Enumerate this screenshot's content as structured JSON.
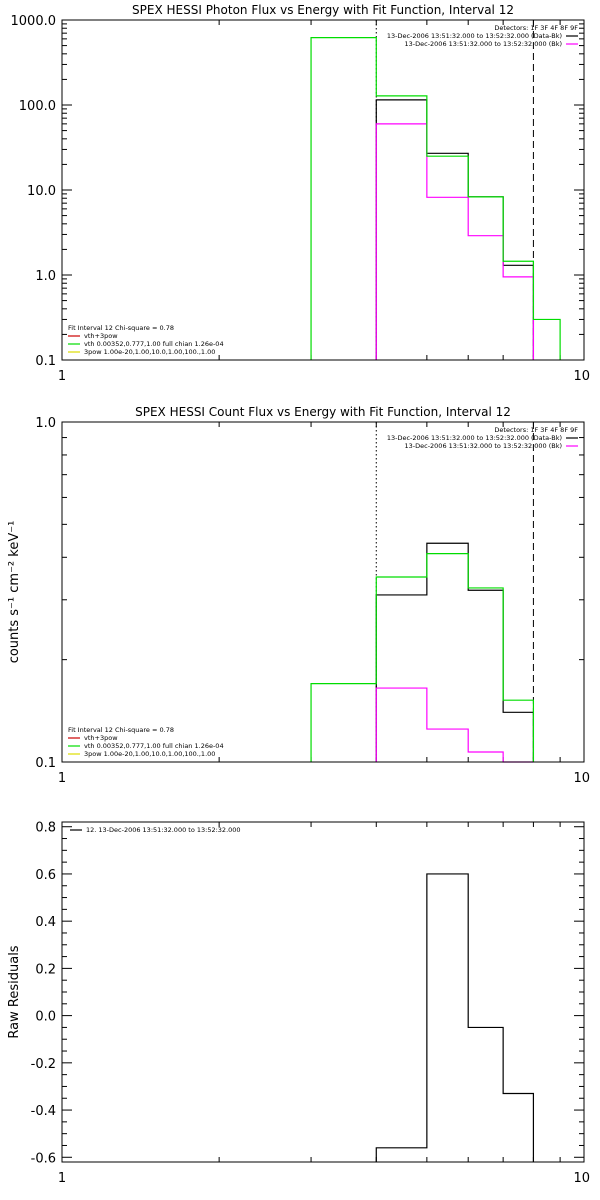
{
  "colors": {
    "data": "#000000",
    "background": "#ff00ff",
    "total_fit": "#00dd00",
    "vth_comp": "#00dd00",
    "vth_3pow": "#cc0000",
    "pow_comp": "#dddd00"
  },
  "chart_data": [
    {
      "type": "line",
      "title": "SPEX HESSI Photon Flux vs Energy with Fit Function, Interval 12",
      "xlabel": "",
      "ylabel": "",
      "xscale": "log",
      "yscale": "log",
      "xlim": [
        1,
        10
      ],
      "ylim": [
        0.1,
        1000
      ],
      "x_ticks": [
        "1",
        "10"
      ],
      "y_ticks": [
        "0.1",
        "1.0",
        "10.0",
        "100.0",
        "1000.0"
      ],
      "legend_top": {
        "header": "Detectors: 1F 3F 4F 8F 9F",
        "entries": [
          {
            "text": "13-Dec-2006 13:51:32.000 to 13:52:32.000 (Data-Bk)",
            "color": "#000000"
          },
          {
            "text": "13-Dec-2006 13:51:32.000 to 13:52:32.000 (Bk)",
            "color": "#ff00ff"
          }
        ]
      },
      "legend_bottom": {
        "header": "Fit Interval 12   Chi-square = 0.78",
        "entries": [
          {
            "text": "vth+3pow",
            "color": "#cc0000"
          },
          {
            "text": "vth 0.00352,0.777,1.00  full chian 1.26e-04",
            "color": "#00dd00"
          },
          {
            "text": "3pow 1.00e-20,1.00,10.0,1.00,100.,1.00",
            "color": "#dddd00"
          }
        ]
      },
      "vlines": [
        {
          "x": 4.0,
          "style": "dotted"
        },
        {
          "x": 8.0,
          "style": "dashed"
        }
      ],
      "series": [
        {
          "name": "13-Dec-2006 13:51:32.000 to 13:52:32.000 (Data-Bk)",
          "color": "#000000",
          "bins": [
            [
              4,
              5,
              115
            ],
            [
              5,
              6,
              27
            ],
            [
              6,
              7,
              8.3
            ],
            [
              7,
              8,
              1.3
            ]
          ]
        },
        {
          "name": "13-Dec-2006 13:51:32.000 to 13:52:32.000 (Bk)",
          "color": "#ff00ff",
          "bins": [
            [
              4,
              5,
              60
            ],
            [
              5,
              6,
              8.2
            ],
            [
              6,
              7,
              2.9
            ],
            [
              7,
              8,
              0.95
            ]
          ]
        },
        {
          "name": "vth+3pow",
          "color": "#00dd00",
          "bins": [
            [
              3,
              4,
              620
            ],
            [
              4,
              5,
              128
            ],
            [
              5,
              6,
              25
            ],
            [
              6,
              7,
              8.3
            ],
            [
              7,
              8,
              1.45
            ],
            [
              8,
              9,
              0.3
            ]
          ]
        }
      ]
    },
    {
      "type": "line",
      "title": "SPEX HESSI Count Flux vs Energy with Fit Function, Interval 12",
      "xlabel": "",
      "ylabel": "counts s⁻¹ cm⁻² keV⁻¹",
      "xscale": "log",
      "yscale": "log",
      "xlim": [
        1,
        10
      ],
      "ylim": [
        0.1,
        1.0
      ],
      "x_ticks": [
        "1",
        "10"
      ],
      "y_ticks": [
        "0.1",
        "1.0"
      ],
      "legend_top": {
        "header": "Detectors: 1F 3F 4F 8F 9F",
        "entries": [
          {
            "text": "13-Dec-2006 13:51:32.000 to 13:52:32.000 (Data-Bk)",
            "color": "#000000"
          },
          {
            "text": "13-Dec-2006 13:51:32.000 to 13:52:32.000 (Bk)",
            "color": "#ff00ff"
          }
        ]
      },
      "legend_bottom": {
        "header": "Fit Interval 12   Chi-square = 0.78",
        "entries": [
          {
            "text": "vth+3pow",
            "color": "#cc0000"
          },
          {
            "text": "vth 0.00352,0.777,1.00  full chian 1.26e-04",
            "color": "#00dd00"
          },
          {
            "text": "3pow 1.00e-20,1.00,10.0,1.00,100.,1.00",
            "color": "#dddd00"
          }
        ]
      },
      "vlines": [
        {
          "x": 4.0,
          "style": "dotted"
        },
        {
          "x": 8.0,
          "style": "dashed"
        }
      ],
      "series": [
        {
          "name": "13-Dec-2006 13:51:32.000 to 13:52:32.000 (Data-Bk)",
          "color": "#000000",
          "bins": [
            [
              4,
              5,
              0.31
            ],
            [
              5,
              6,
              0.44
            ],
            [
              6,
              7,
              0.32
            ],
            [
              7,
              8,
              0.14
            ]
          ]
        },
        {
          "name": "13-Dec-2006 13:51:32.000 to 13:52:32.000 (Bk)",
          "color": "#ff00ff",
          "bins": [
            [
              4,
              5,
              0.165
            ],
            [
              5,
              6,
              0.125
            ],
            [
              6,
              7,
              0.107
            ],
            [
              7,
              8,
              0.1
            ]
          ]
        },
        {
          "name": "vth+3pow",
          "color": "#00dd00",
          "bins": [
            [
              3,
              4,
              0.17
            ],
            [
              4,
              5,
              0.35
            ],
            [
              5,
              6,
              0.41
            ],
            [
              6,
              7,
              0.325
            ],
            [
              7,
              8,
              0.152
            ]
          ]
        }
      ]
    },
    {
      "type": "line",
      "title": "",
      "xlabel": "",
      "ylabel": "Raw Residuals",
      "xscale": "log",
      "yscale": "linear",
      "xlim": [
        1,
        10
      ],
      "ylim": [
        -0.62,
        0.82
      ],
      "x_ticks": [
        "1",
        "10"
      ],
      "y_ticks": [
        "-0.6",
        "-0.4",
        "-0.2",
        "0.0",
        "0.2",
        "0.4",
        "0.6",
        "0.8"
      ],
      "legend_top": {
        "header": "",
        "entries": [
          {
            "text": "12. 13-Dec-2006 13:51:32.000 to 13:52:32.000",
            "color": "#000000"
          }
        ]
      },
      "vlines": [],
      "series": [
        {
          "name": "12. 13-Dec-2006 13:51:32.000 to 13:52:32.000",
          "color": "#000000",
          "bins": [
            [
              4,
              5,
              -0.56
            ],
            [
              5,
              6,
              0.6
            ],
            [
              6,
              7,
              -0.05
            ],
            [
              7,
              8,
              -0.33
            ]
          ]
        }
      ]
    }
  ]
}
